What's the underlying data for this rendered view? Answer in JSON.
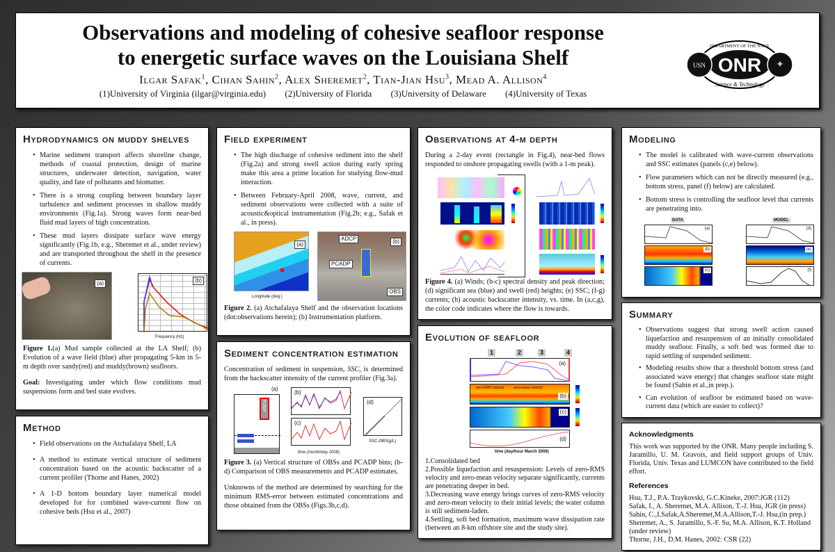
{
  "header": {
    "title_line1": "Observations and modeling of cohesive seafloor response",
    "title_line2": "to energetic surface waves on the Louisiana Shelf",
    "authors": [
      {
        "name": "Ilgar Safak",
        "sup": "1"
      },
      {
        "name": "Cihan Sahin",
        "sup": "2"
      },
      {
        "name": "Alex Sheremet",
        "sup": "2"
      },
      {
        "name": "Tian-Jian Hsu",
        "sup": "3"
      },
      {
        "name": "Mead A. Allison",
        "sup": "4"
      }
    ],
    "affiliations": [
      "(1)University of Virginia (ilgar@virginia.edu)",
      "(2)University of Florida",
      "(3)University of Delaware",
      "(4)University of Texas"
    ],
    "logo": {
      "top_text": "DEPARTMENT OF THE NAVY",
      "center": "ONR",
      "bottom_text": "Science & Technology",
      "left_seal": "USN"
    }
  },
  "hydro": {
    "heading": "Hydrodynamics on muddy shelves",
    "bullets": [
      "Marine sediment transport affects shoreline change, methods of coastal protection, design of marine structures, underwater detection, navigation, water quality, and fate of pollutants and biomatter.",
      "There is a strong coupling between boundary layer turbulence and sediment processes in shallow muddy environments (Fig.1a). Strong waves form near-bed fluid mud layers of high concentration.",
      "These mud layers dissipate surface wave energy significantly (Fig.1b, e.g., Sheremet et al., under review) and are transported throughout the shelf in the presence of currents."
    ],
    "fig_labels": [
      "(a)",
      "(b)"
    ],
    "fig_xlabel": "Frequency (Hz)",
    "caption_label": "Figure 1.",
    "caption": "(a) Mud sample collected at the LA Shelf; (b) Evolution of a wave field (blue) after propagating 5-km in 5-m depth over sandy(red) and muddy(brown) seafloors.",
    "goal_label": "Goal:",
    "goal": "Investigating under which flow conditions mud suspensions form and bed state evolves."
  },
  "method": {
    "heading": "Method",
    "bullets": [
      "Field observations on the Atchafalaya Shelf, LA",
      "A method to estimate vertical structure of sediment concentration based on the acoustic backscatter of a current profiler (Thorne and Hanes, 2002)",
      "A 1-D bottom boundary layer numerical model developed for for combined wave-current flow on cohesive beds (Hsu et al., 2007)"
    ]
  },
  "field": {
    "heading": "Field experiment",
    "bullets": [
      "The high discharge of cohesive sediment into the shelf (Fig.2a) and strong swell action during early spring make this area a prime location for studying flow-mud interaction.",
      "Between February-April 2008, wave, current, and sediment observations were collected with a suite of acoustic&optical instrumentation (Fig.2b; e.g., Safak et al., in press)."
    ],
    "fig_labels": [
      "(a)",
      "(b)"
    ],
    "map_xlabel": "Longitude (deg.)",
    "photo_labels": [
      "ADCP",
      "PCADP",
      "OBS"
    ],
    "caption_label": "Figure 2.",
    "caption": "(a) Atchafalaya Shelf and the observation locations (dot:observations herein); (b) Instrumentation platform."
  },
  "sediment": {
    "heading": "Sediment concentration estimation",
    "intro_pre": "Concentration of sediment in suspension, ",
    "intro_em": "SSC",
    "intro_post": ", is determined from the backscatter intensity of the current profiler (Fig.3a).",
    "fig_labels": [
      "(a)",
      "(b)",
      "(c)",
      "(d)"
    ],
    "pcadp_label": "PCADP",
    "time_xlabel": "time (month/day 2008)",
    "scatter_xlabel": "SSC-OBS(g/L)",
    "caption_label": "Figure 3.",
    "caption": "(a) Vertical structure of OBSs and PCADP bins; (b-d) Comparison of OBS measurements and PCADP estimates.",
    "body": "Unknowns of the method are determined by searching for the minimum RMS-error between estimated concentrations and those obtained from the OBSs (Figs.3b,c,d)."
  },
  "observations": {
    "heading": "Observations at 4-m depth",
    "intro": "During a 2-day event (rectangle in Fig.4), near-bed flows responded to onshore propagating swells (with a 1-m peak).",
    "caption_label": "Figure 4.",
    "caption": "(a) Winds; (b-c) spectral density and peak direction; (d) significant sea (blue) and swell (red) heights; (e) SSC; (f-g) currents; (h) acoustic backscatter intensity, vs. time. In (a,c,g), the color code indicates where the flow is towards."
  },
  "evolution": {
    "heading": "Evolution of seafloor",
    "stages": [
      "1",
      "2",
      "3",
      "4"
    ],
    "annotations": [
      "zero-RMS velocity",
      "zero-mean velocity"
    ],
    "fig_labels": [
      "(a)",
      "(b)",
      "(c)",
      "(d)"
    ],
    "xlabel": "time (day/hour March 2008)",
    "items": [
      "1.Consolidated bed",
      "2.Possible liquefaction and resuspension: Levels of zero-RMS velocity and zero-mean velocity separate significantly, currents are penetrating deeper in bed.",
      "3.Decreasing wave energy brings curves of zero-RMS velocity and zero-mean velocity to their initial levels; the water column is still sediment-laden.",
      "4.Settling, soft bed formation, maximum wave dissipation rate (between an 8-km offshore site and the study site)."
    ]
  },
  "modeling": {
    "heading": "Modeling",
    "bullets": [
      "The model is calibrated with wave-current observations and SSC estimates (panels (c,e) below).",
      "Flow parameters which can not be directly measured (e.g., bottom stress, panel (f) below) are calculated.",
      "Bottom stress is controlling the seafloor level that currents are penetrating into."
    ],
    "data_label": "DATA",
    "model_label": "MODEL",
    "fig_labels_data": [
      "(a)",
      "(b)",
      "(c)"
    ],
    "fig_labels_model": [
      "(d)",
      "(e)",
      "(f)"
    ]
  },
  "summary": {
    "heading": "Summary",
    "bullets": [
      "Observations suggest that strong swell action caused liquefaction and resuspension of an initially consolidated muddy seafloor. Finally, a soft bed was formed due to rapid settling of suspended sediment.",
      "Modeling results show that a threshold bottom stress (and associated wave energy) that changes seafloor state might be found (Sahin et al.,in prep.).",
      "Can evolution of seafloor be estimated based on wave-current data (which are easier to collect)?"
    ]
  },
  "ack": {
    "heading": "Acknowledgments",
    "text": "This work was supported by the ONR. Many people including S. Jaramillo, U. M. Gravois, and field support groups of Univ. Florida, Univ. Texas and LUMCON have contributed to the field effort.",
    "refs_heading": "References",
    "refs": [
      "Hsu, T.J., P.A. Traykovski, G.C.Kineke, 2007:JGR (112)",
      "Safak, I., A. Sheremet, M.A. Allison, T.-J. Hsu, JGR (in press)",
      "Sahin, C.,I.Safak,A.Sheremet,M.A.Allison,T.-J. Hsu,(in prep.)",
      "Sheremet, A., S. Jaramillo, S.-F. Su, M.A. Allison, K.T. Holland (under review)",
      "Thorne, J.H., D.M. Hanes, 2002: CSR (22)"
    ]
  }
}
